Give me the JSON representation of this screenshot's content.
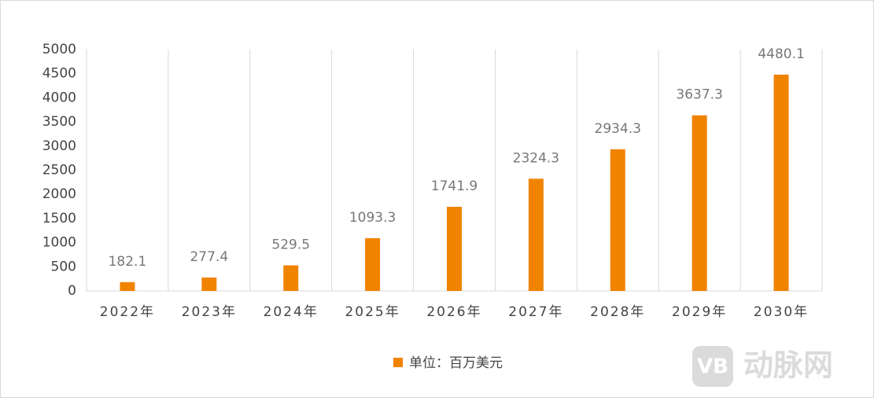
{
  "chart_data": {
    "type": "bar",
    "categories": [
      "2022年",
      "2023年",
      "2024年",
      "2025年",
      "2026年",
      "2027年",
      "2028年",
      "2029年",
      "2030年"
    ],
    "series": [
      {
        "name": "单位：百万美元",
        "color": "#f08300",
        "values": [
          182.1,
          277.4,
          529.5,
          1093.3,
          1741.9,
          2324.3,
          2934.3,
          3637.3,
          4480.1
        ]
      }
    ],
    "ylim": [
      0,
      5000
    ],
    "yticks": [
      0,
      500,
      1000,
      1500,
      2000,
      2500,
      3000,
      3500,
      4000,
      4500,
      5000
    ],
    "grid": true,
    "legend": "bottom"
  },
  "watermark": {
    "logo": "VB",
    "text": "动脉网"
  }
}
